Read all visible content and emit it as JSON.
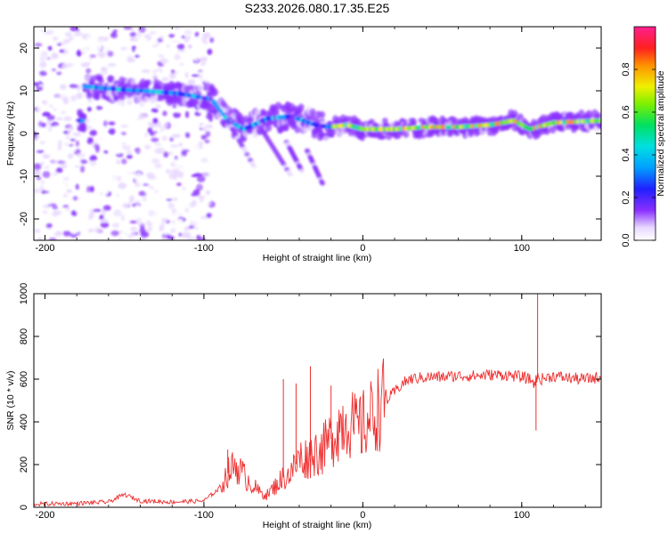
{
  "title": "S233.2026.080.17.35.E25",
  "chart_data": [
    {
      "type": "heatmap",
      "xlabel": "Height of straight line (km)",
      "ylabel": "Frequency (Hz)",
      "xlim": [
        -207,
        150
      ],
      "ylim": [
        -25,
        25
      ],
      "xticks": [
        -200,
        -100,
        0,
        100
      ],
      "yticks": [
        -20,
        -10,
        0,
        10,
        20
      ],
      "colorbar": {
        "label": "Normalized spectral amplitude",
        "range": [
          0,
          1
        ],
        "ticks": [
          0.0,
          0.2,
          0.4,
          0.6,
          0.8
        ]
      },
      "ridge": [
        {
          "x": -175,
          "f": 11
        },
        {
          "x": -160,
          "f": 10.5
        },
        {
          "x": -140,
          "f": 10
        },
        {
          "x": -120,
          "f": 9.5
        },
        {
          "x": -110,
          "f": 9
        },
        {
          "x": -95,
          "f": 8
        },
        {
          "x": -85,
          "f": 3
        },
        {
          "x": -75,
          "f": 1
        },
        {
          "x": -60,
          "f": 3.5
        },
        {
          "x": -45,
          "f": 4
        },
        {
          "x": -30,
          "f": 2
        },
        {
          "x": -20,
          "f": 1.5
        },
        {
          "x": -10,
          "f": 2
        },
        {
          "x": 0,
          "f": 1
        },
        {
          "x": 20,
          "f": 1
        },
        {
          "x": 40,
          "f": 1.5
        },
        {
          "x": 60,
          "f": 1.5
        },
        {
          "x": 80,
          "f": 2
        },
        {
          "x": 95,
          "f": 3
        },
        {
          "x": 105,
          "f": 1
        },
        {
          "x": 120,
          "f": 2.5
        },
        {
          "x": 150,
          "f": 3
        }
      ]
    },
    {
      "type": "line",
      "xlabel": "Height of straight line (km)",
      "ylabel": "SNR (10 * v/v)",
      "xlim": [
        -207,
        150
      ],
      "ylim": [
        0,
        1000
      ],
      "xticks": [
        -200,
        -100,
        0,
        100
      ],
      "yticks": [
        0,
        200,
        400,
        600,
        800,
        1000
      ],
      "color": "#ee3030",
      "series": [
        {
          "name": "SNR",
          "x": [
            -207,
            -180,
            -160,
            -150,
            -140,
            -120,
            -100,
            -90,
            -85,
            -80,
            -75,
            -70,
            -65,
            -60,
            -55,
            -50,
            -45,
            -40,
            -35,
            -30,
            -25,
            -20,
            -15,
            -10,
            -5,
            0,
            5,
            10,
            15,
            20,
            25,
            30,
            40,
            50,
            60,
            70,
            80,
            90,
            100,
            105,
            108,
            110,
            112,
            120,
            130,
            140,
            150
          ],
          "y": [
            15,
            18,
            25,
            60,
            30,
            25,
            30,
            90,
            160,
            200,
            150,
            110,
            70,
            60,
            100,
            140,
            160,
            230,
            230,
            260,
            270,
            320,
            380,
            420,
            370,
            380,
            420,
            470,
            500,
            540,
            580,
            600,
            610,
            610,
            615,
            615,
            620,
            620,
            610,
            600,
            580,
            610,
            600,
            615,
            605,
            600,
            610
          ]
        }
      ],
      "spikes": [
        {
          "x": -85,
          "y": 270
        },
        {
          "x": -50,
          "y": 600
        },
        {
          "x": -42,
          "y": 580
        },
        {
          "x": -33,
          "y": 660
        },
        {
          "x": -20,
          "y": 570
        },
        {
          "x": 110,
          "y": 1000
        },
        {
          "x": 109,
          "y": 360
        }
      ]
    }
  ]
}
